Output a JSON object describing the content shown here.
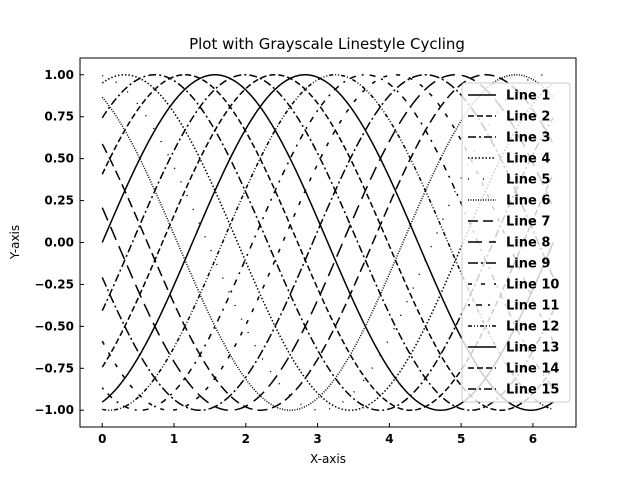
{
  "chart_data": {
    "type": "line",
    "title": "Plot with Grayscale Linestyle Cycling",
    "xlabel": "X-axis",
    "ylabel": "Y-axis",
    "xlim": [
      -0.31,
      6.6
    ],
    "ylim": [
      -1.1,
      1.1
    ],
    "x_ticks": [
      0,
      1,
      2,
      3,
      4,
      5,
      6
    ],
    "y_ticks": [
      -1.0,
      -0.75,
      -0.5,
      -0.25,
      0.0,
      0.25,
      0.5,
      0.75,
      1.0
    ],
    "x_tick_labels": [
      "0",
      "1",
      "2",
      "3",
      "4",
      "5",
      "6"
    ],
    "y_tick_labels": [
      "−1.00",
      "−0.75",
      "−0.50",
      "−0.25",
      "0.00",
      "0.25",
      "0.50",
      "0.75",
      "1.00"
    ],
    "grid": false,
    "legend_position": "upper-right",
    "x_range": [
      0,
      6.2832
    ],
    "function": "y = sin(x + phase)",
    "series": [
      {
        "name": "Line 1",
        "phase": 0.0,
        "dash": ""
      },
      {
        "name": "Line 2",
        "phase": 0.4189,
        "dash": "6,3"
      },
      {
        "name": "Line 3",
        "phase": 0.8378,
        "dash": "8,3,2,3"
      },
      {
        "name": "Line 4",
        "phase": 1.2566,
        "dash": "1.5,2"
      },
      {
        "name": "Line 5",
        "phase": 1.6755,
        "dash": "1,14"
      },
      {
        "name": "Line 6",
        "phase": 2.0944,
        "dash": "1,1.5"
      },
      {
        "name": "Line 7",
        "phase": 2.5133,
        "dash": "10,5"
      },
      {
        "name": "Line 8",
        "phase": 2.9322,
        "dash": "14,7"
      },
      {
        "name": "Line 9",
        "phase": 3.351,
        "dash": "10,3,2,3"
      },
      {
        "name": "Line 10",
        "phase": 3.7699,
        "dash": "4,9"
      },
      {
        "name": "Line 11",
        "phase": 4.1888,
        "dash": "2,6,6,6"
      },
      {
        "name": "Line 12",
        "phase": 4.6077,
        "dash": "4,2,1,2,1,2"
      },
      {
        "name": "Line 13",
        "phase": 5.0265,
        "dash": ""
      },
      {
        "name": "Line 14",
        "phase": 5.4454,
        "dash": "6,3"
      },
      {
        "name": "Line 15",
        "phase": 5.8643,
        "dash": "8,3,2,3"
      }
    ]
  }
}
